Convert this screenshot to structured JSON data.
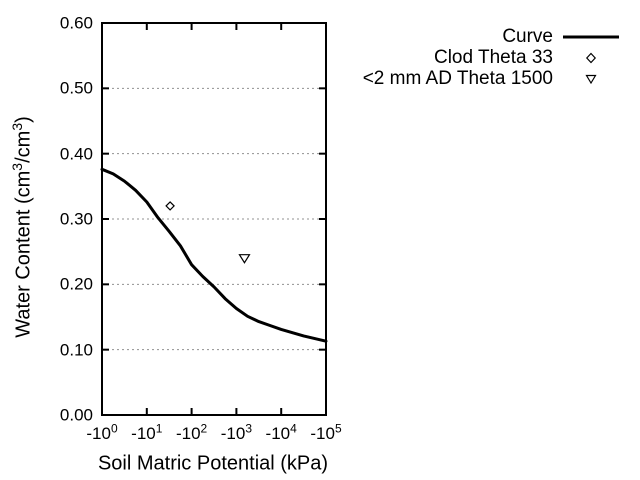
{
  "figure": {
    "background": "#ffffff",
    "ink_color": "#000000",
    "grid_color": "#909090"
  },
  "x_axis": {
    "title": "Soil Matric Potential (kPa)",
    "tick_base": "-10",
    "tick_exponents": [
      "0",
      "1",
      "2",
      "3",
      "4",
      "5"
    ],
    "tick_log_values": [
      0,
      1,
      2,
      3,
      4,
      5
    ]
  },
  "y_axis": {
    "title_parts": {
      "pre": "Water Content (cm",
      "sup1": "3",
      "mid": "/cm",
      "sup2": "3",
      "post": ")"
    },
    "tick_labels": [
      "0.00",
      "0.10",
      "0.20",
      "0.30",
      "0.40",
      "0.50",
      "0.60"
    ],
    "tick_values": [
      0,
      0.1,
      0.2,
      0.3,
      0.4,
      0.5,
      0.6
    ]
  },
  "legend": {
    "items": [
      {
        "label": "Curve",
        "marker": "line"
      },
      {
        "label": "Clod Theta 33",
        "marker": "open-diamond"
      },
      {
        "label": "<2 mm AD Theta 1500",
        "marker": "open-triangle-down"
      }
    ]
  },
  "chart_data": {
    "type": "line",
    "title": "",
    "xlabel": "Soil Matric Potential (kPa)",
    "ylabel": "Water Content (cm3/cm3)",
    "x_scale": "logarithmic in |kPa|, shown as -10^0 to -10^5",
    "xlim_log10_abs": [
      0,
      5
    ],
    "ylim": [
      0,
      0.6
    ],
    "grid": "horizontal dotted lines at 0.10, 0.20, 0.30, 0.40, 0.50",
    "legend_position": "top-right, outside plot area",
    "series": [
      {
        "name": "Curve",
        "type": "line",
        "log10_abs_kPa": [
          0,
          0.25,
          0.5,
          0.75,
          1.0,
          1.25,
          1.5,
          1.75,
          2.0,
          2.25,
          2.5,
          2.75,
          3.0,
          3.25,
          3.5,
          3.75,
          4.0,
          4.25,
          4.5,
          4.75,
          5.0
        ],
        "theta": [
          0.376,
          0.369,
          0.358,
          0.344,
          0.326,
          0.302,
          0.281,
          0.259,
          0.23,
          0.212,
          0.196,
          0.178,
          0.163,
          0.151,
          0.143,
          0.137,
          0.131,
          0.126,
          0.121,
          0.117,
          0.113
        ]
      },
      {
        "name": "Clod Theta 33",
        "type": "scatter",
        "marker": "open-diamond",
        "points": [
          {
            "kPa": -33,
            "log10_abs_kPa": 1.52,
            "theta": 0.32
          }
        ]
      },
      {
        "name": "<2 mm AD Theta 1500",
        "type": "scatter",
        "marker": "open-triangle-down",
        "points": [
          {
            "kPa": -1500,
            "log10_abs_kPa": 3.18,
            "theta": 0.24
          }
        ]
      }
    ]
  }
}
